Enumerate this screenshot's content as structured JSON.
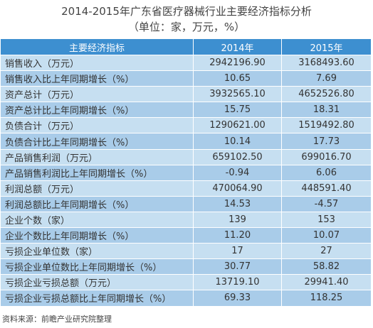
{
  "title": {
    "line1": "2014-2015年广东省医疗器械行业主要经济指标分析",
    "line2": "（单位：家，万元，%）"
  },
  "chart_data": {
    "type": "table",
    "columns": [
      "主要经济指标",
      "2014年",
      "2015年"
    ],
    "rows": [
      [
        "销售收入（万元）",
        "2942196.90",
        "3168493.60"
      ],
      [
        "销售收入比上年同期增长（%）",
        "10.65",
        "7.69"
      ],
      [
        "资产总计（万元）",
        "3932565.10",
        "4652526.80"
      ],
      [
        "资产总计比上年同期增长（%）",
        "15.75",
        "18.31"
      ],
      [
        "负债合计（万元）",
        "1290621.00",
        "1519492.80"
      ],
      [
        "负债合计比上年同期增长（%）",
        "10.14",
        "17.73"
      ],
      [
        "产品销售利润（万元）",
        "659102.50",
        "699016.70"
      ],
      [
        "产品销售利润比上年同期增长（%）",
        "-0.94",
        "6.06"
      ],
      [
        "利润总额（万元）",
        "470064.90",
        "448591.40"
      ],
      [
        "利润总额比上年同期增长（%）",
        "14.53",
        "-4.57"
      ],
      [
        "企业个数（家）",
        "139",
        "153"
      ],
      [
        "企业个数比上年同期增长（%）",
        "11.20",
        "10.07"
      ],
      [
        "亏损企业单位数（家）",
        "17",
        "27"
      ],
      [
        "亏损企业单位数比上年同期增长（%）",
        "30.77",
        "58.82"
      ],
      [
        "亏损企业亏损总额（万元）",
        "13719.10",
        "29941.40"
      ],
      [
        "亏损企业亏损总额比上年同期增长（%）",
        "69.33",
        "118.25"
      ]
    ]
  },
  "source": "资料来源：前瞻产业研究院整理",
  "colors": {
    "header": "#3d8fd0",
    "row_light": "#c6dff1",
    "row_dark": "#a9cce9"
  }
}
